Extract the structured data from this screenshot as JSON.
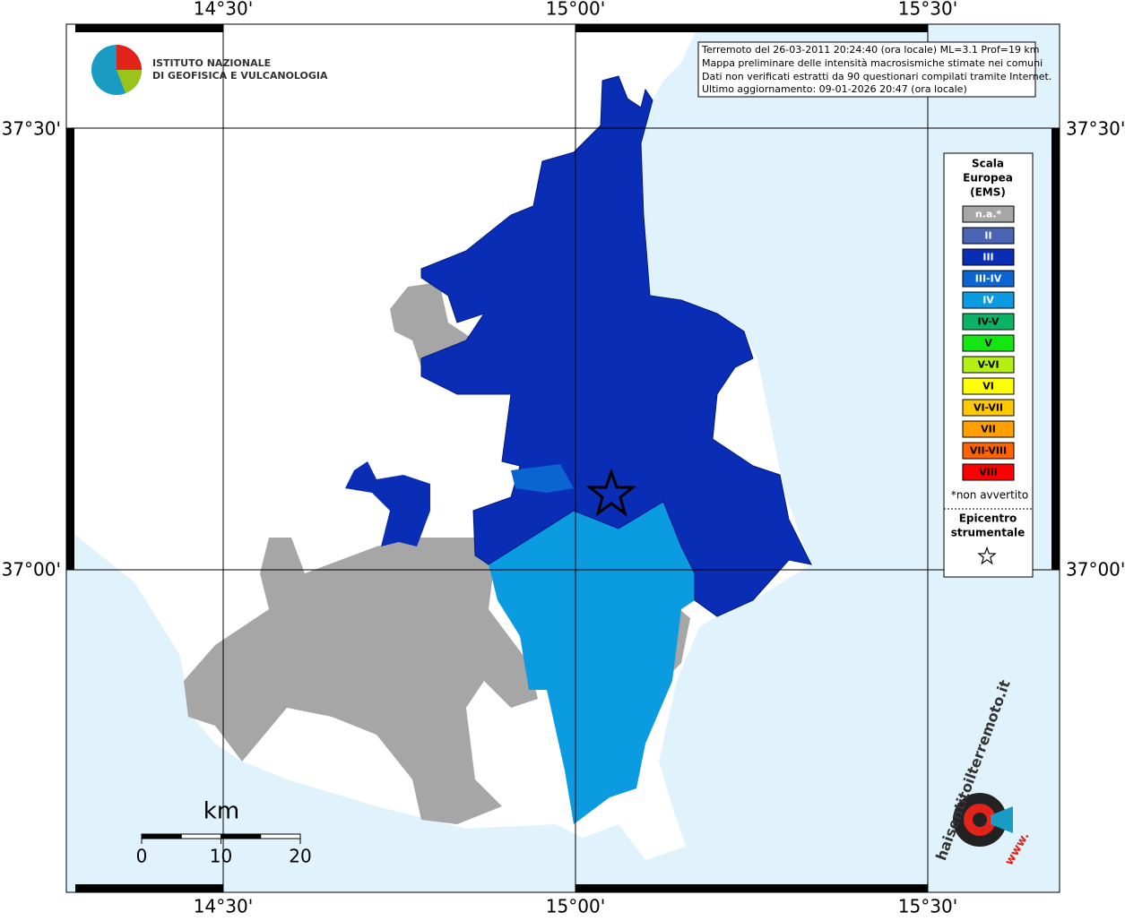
{
  "map": {
    "lon_labels": [
      "14°30'",
      "15°00'",
      "15°30'"
    ],
    "lat_labels": [
      "37°30'",
      "37°00'"
    ],
    "logo": [
      "ISTITUTO NAZIONALE",
      "DI GEOFISICA E VULCANOLOGIA"
    ],
    "info": [
      "Terremoto del 26-03-2011 20:24:40 (ora locale) ML=3.1 Prof=19 km",
      "Mappa preliminare delle intensità macrosismiche stimate nei comuni",
      "Dati non verificati estratti da 90 questionari compilati tramite Internet.",
      "Ultimo aggiornamento: 09-01-2026 20:47 (ora locale)"
    ],
    "legend": {
      "title": [
        "Scala",
        "Europea",
        "(EMS)"
      ],
      "items": [
        {
          "label": "n.a.*",
          "color": "#a6a6a6"
        },
        {
          "label": "II",
          "color": "#4a64b4"
        },
        {
          "label": "III",
          "color": "#0a2db5"
        },
        {
          "label": "III-IV",
          "color": "#0a64d2"
        },
        {
          "label": "IV",
          "color": "#0a9be0"
        },
        {
          "label": "IV-V",
          "color": "#0ab464"
        },
        {
          "label": "V",
          "color": "#14e614"
        },
        {
          "label": "V-VI",
          "color": "#b4f014"
        },
        {
          "label": "VI",
          "color": "#ffff00"
        },
        {
          "label": "VI-VII",
          "color": "#ffc800"
        },
        {
          "label": "VII",
          "color": "#ffa000"
        },
        {
          "label": "VII-VIII",
          "color": "#ff6400"
        },
        {
          "label": "VIII",
          "color": "#ff0000"
        }
      ],
      "note": "*non avvertito",
      "epicenter": [
        "Epicentro",
        "strumentale"
      ]
    },
    "scale": {
      "unit": "km",
      "ticks": [
        0,
        10,
        20
      ]
    },
    "site_logo": {
      "text": "haisentitoilterremoto.it",
      "www": "www."
    }
  }
}
